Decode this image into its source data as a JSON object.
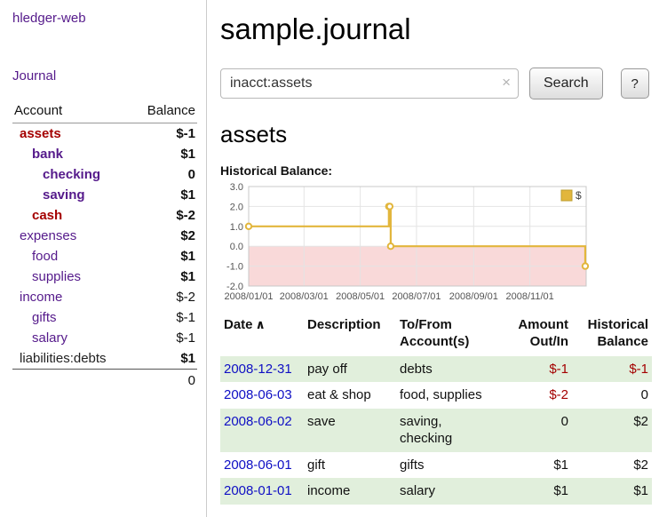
{
  "app": {
    "brand": "hledger-web",
    "journal": "Journal"
  },
  "sidebar": {
    "account_header": "Account",
    "balance_header": "Balance",
    "accounts": [
      {
        "name": "assets",
        "balance": "$-1"
      },
      {
        "name": "bank",
        "balance": "$1"
      },
      {
        "name": "checking",
        "balance": "0"
      },
      {
        "name": "saving",
        "balance": "$1"
      },
      {
        "name": "cash",
        "balance": "$-2"
      },
      {
        "name": "expenses",
        "balance": "$2"
      },
      {
        "name": "food",
        "balance": "$1"
      },
      {
        "name": "supplies",
        "balance": "$1"
      },
      {
        "name": "income",
        "balance": "$-2"
      },
      {
        "name": "gifts",
        "balance": "$-1"
      },
      {
        "name": "salary",
        "balance": "$-1"
      },
      {
        "name": "liabilities:debts",
        "balance": "$1"
      }
    ],
    "total": "0"
  },
  "main": {
    "title": "sample.journal",
    "search": {
      "value": "inacct:assets",
      "clear": "×",
      "submit": "Search",
      "help": "?"
    },
    "account_title": "assets",
    "chart_label": "Historical Balance:"
  },
  "chart_data": {
    "type": "line",
    "step": true,
    "title": "Historical Balance",
    "series": [
      {
        "name": "$",
        "color": "#e2b63c",
        "x": [
          "2008-01-01",
          "2008-06-01",
          "2008-06-02",
          "2008-06-03",
          "2008-12-31"
        ],
        "values": [
          1,
          2,
          2,
          0,
          -1
        ]
      }
    ],
    "x_range": [
      "2008-01-01",
      "2009-01-01"
    ],
    "ylim": [
      -2,
      3
    ],
    "y_ticks": [
      3.0,
      2.0,
      1.0,
      0.0,
      -1.0,
      -2.0
    ],
    "y_tick_labels": [
      "3.0",
      "2.0",
      "1.0",
      "0.0",
      "-1.0",
      "-2.0"
    ],
    "x_tick_labels": [
      "2008/01/01",
      "2008/03/01",
      "2008/05/01",
      "2008/07/01",
      "2008/09/01",
      "2008/11/01"
    ],
    "negative_region_color": "#f9d9d9",
    "legend_label": "$",
    "legend_position": "top-right",
    "grid": true
  },
  "register": {
    "headers": {
      "date": "Date",
      "sort": "∧",
      "description": "Description",
      "accounts": "To/From Account(s)",
      "amount": "Amount Out/In",
      "balance": "Historical Balance"
    },
    "rows": [
      {
        "date": "2008-12-31",
        "description": "pay off",
        "accounts": "debts",
        "amount": "$-1",
        "balance": "$-1"
      },
      {
        "date": "2008-06-03",
        "description": "eat & shop",
        "accounts": "food, supplies",
        "amount": "$-2",
        "balance": "0"
      },
      {
        "date": "2008-06-02",
        "description": "save",
        "accounts": "saving, checking",
        "amount": "0",
        "balance": "$2"
      },
      {
        "date": "2008-06-01",
        "description": "gift",
        "accounts": "gifts",
        "amount": "$1",
        "balance": "$2"
      },
      {
        "date": "2008-01-01",
        "description": "income",
        "accounts": "salary",
        "amount": "$1",
        "balance": "$1"
      }
    ]
  }
}
